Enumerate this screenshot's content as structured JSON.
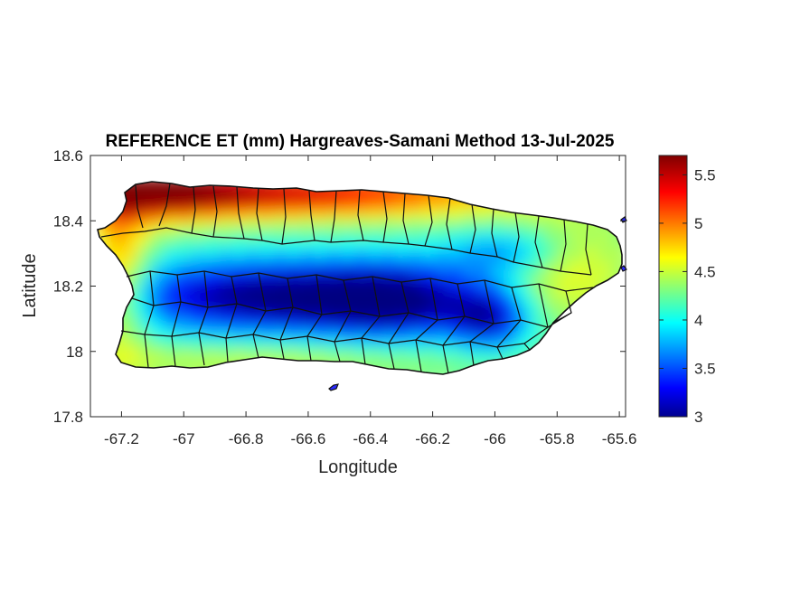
{
  "chart_data": {
    "type": "heatmap",
    "title": "REFERENCE ET (mm) Hargreaves-Samani Method  13-Jul-2025",
    "xlabel": "Longitude",
    "ylabel": "Latitude",
    "xlim": [
      -67.3,
      -65.58
    ],
    "ylim": [
      17.8,
      18.6
    ],
    "x_ticks": [
      -67.2,
      -67,
      -66.8,
      -66.6,
      -66.4,
      -66.2,
      -66,
      -65.8,
      -65.6
    ],
    "x_tick_labels": [
      "-67.2",
      "-67",
      "-66.8",
      "-66.6",
      "-66.4",
      "-66.2",
      "-66",
      "-65.8",
      "-65.6"
    ],
    "y_ticks": [
      17.8,
      18,
      18.2,
      18.4,
      18.6
    ],
    "y_tick_labels": [
      "17.8",
      "18",
      "18.2",
      "18.4",
      "18.6"
    ],
    "colorbar": {
      "colormap": "jet",
      "limits": [
        3,
        5.7
      ],
      "ticks": [
        3,
        3.5,
        4,
        4.5,
        5,
        5.5
      ],
      "tick_labels": [
        "3",
        "3.5",
        "4",
        "4.5",
        "5",
        "5.5"
      ]
    },
    "field_summary": {
      "north_coast": 5.5,
      "west_coast": 5.2,
      "south_coast": 4.4,
      "central_mountains": 3.3,
      "east_coast": 4.6
    },
    "region": "Puerto Rico"
  }
}
